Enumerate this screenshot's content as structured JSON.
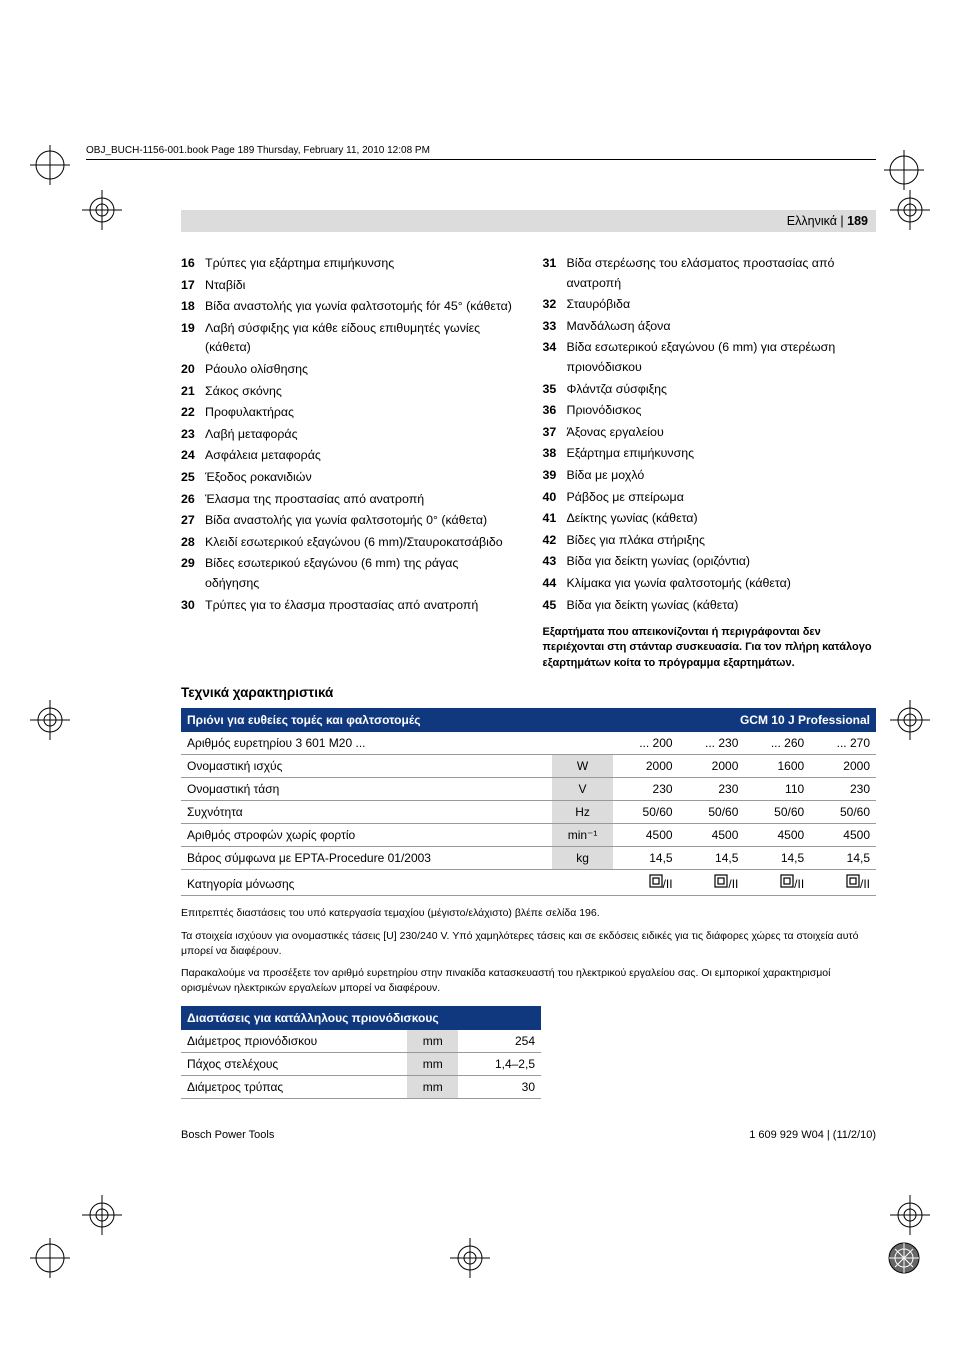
{
  "header_line": "OBJ_BUCH-1156-001.book  Page 189  Thursday, February 11, 2010  12:08 PM",
  "lang_label": "Ελληνικά | ",
  "page_no": "189",
  "left_items": [
    {
      "n": "16",
      "t": "Τρύπες για εξάρτημα επιμήκυνσης"
    },
    {
      "n": "17",
      "t": "Νταβίδι"
    },
    {
      "n": "18",
      "t": "Βίδα αναστολής για γωνία φαλτσοτομής fόr 45° (κάθετα)"
    },
    {
      "n": "19",
      "t": "Λαβή σύσφιξης για κάθε είδους επιθυμητές γωνίες (κάθετα)"
    },
    {
      "n": "20",
      "t": "Ράουλο ολίσθησης"
    },
    {
      "n": "21",
      "t": "Σάκος σκόνης"
    },
    {
      "n": "22",
      "t": "Προφυλακτήρας"
    },
    {
      "n": "23",
      "t": "Λαβή μεταφοράς"
    },
    {
      "n": "24",
      "t": "Ασφάλεια μεταφοράς"
    },
    {
      "n": "25",
      "t": "Έξοδος ροκανιδιών"
    },
    {
      "n": "26",
      "t": "Έλασμα της προστασίας από ανατροπή"
    },
    {
      "n": "27",
      "t": "Βίδα αναστολής για γωνία φαλτσοτομής 0° (κάθετα)"
    },
    {
      "n": "28",
      "t": "Κλειδί εσωτερικού εξαγώνου (6 mm)/Σταυροκατσάβιδο"
    },
    {
      "n": "29",
      "t": "Βίδες εσωτερικού εξαγώνου (6 mm) της ράγας οδήγησης"
    },
    {
      "n": "30",
      "t": "Τρύπες για το έλασμα προστασίας από ανατροπή"
    }
  ],
  "right_items": [
    {
      "n": "31",
      "t": "Βίδα στερέωσης του ελάσματος προστασίας από ανατροπή"
    },
    {
      "n": "32",
      "t": "Σταυρόβιδα"
    },
    {
      "n": "33",
      "t": "Μανδάλωση άξονα"
    },
    {
      "n": "34",
      "t": "Βίδα εσωτερικού εξαγώνου (6 mm) για στερέωση πριονόδισκου"
    },
    {
      "n": "35",
      "t": "Φλάντζα σύσφιξης"
    },
    {
      "n": "36",
      "t": "Πριονόδισκος"
    },
    {
      "n": "37",
      "t": "Άξονας εργαλείου"
    },
    {
      "n": "38",
      "t": "Εξάρτημα επιμήκυνσης"
    },
    {
      "n": "39",
      "t": "Βίδα με μοχλό"
    },
    {
      "n": "40",
      "t": "Ράβδος με σπείρωμα"
    },
    {
      "n": "41",
      "t": "Δείκτης γωνίας (κάθετα)"
    },
    {
      "n": "42",
      "t": "Βίδες για πλάκα στήριξης"
    },
    {
      "n": "43",
      "t": "Βίδα για δείκτη γωνίας (οριζόντια)"
    },
    {
      "n": "44",
      "t": "Κλίμακα για γωνία φαλτσοτομής (κάθετα)"
    },
    {
      "n": "45",
      "t": "Βίδα για δείκτη γωνίας (κάθετα)"
    }
  ],
  "acc_note": "Εξαρτήματα που απεικονίζονται ή περιγράφονται δεν περιέχονται στη στάνταρ συσκευασία. Για τον πλήρη κατάλογο εξαρτημάτων κοίτα το πρόγραμμα εξαρτημάτων.",
  "tech_title": "Τεχνικά χαρακτηριστικά",
  "table1": {
    "hdrL": "Πριόνι για ευθείες τομές και φαλτσοτομές",
    "hdrR": "GCM 10 J Professional",
    "rows": [
      {
        "label": "Αριθμός ευρετηρίου 3 601 M20 ...",
        "unit": "",
        "v": [
          "... 200",
          "... 230",
          "... 260",
          "... 270"
        ]
      },
      {
        "label": "Ονομαστική ισχύς",
        "unit": "W",
        "v": [
          "2000",
          "2000",
          "1600",
          "2000"
        ]
      },
      {
        "label": "Ονομαστική τάση",
        "unit": "V",
        "v": [
          "230",
          "230",
          "110",
          "230"
        ]
      },
      {
        "label": "Συχνότητα",
        "unit": "Hz",
        "v": [
          "50/60",
          "50/60",
          "50/60",
          "50/60"
        ]
      },
      {
        "label": "Αριθμός στροφών χωρίς φορτίο",
        "unit": "min⁻¹",
        "v": [
          "4500",
          "4500",
          "4500",
          "4500"
        ]
      },
      {
        "label": "Βάρος σύμφωνα με EPTA-Procedure 01/2003",
        "unit": "kg",
        "v": [
          "14,5",
          "14,5",
          "14,5",
          "14,5"
        ]
      },
      {
        "label": "Κατηγορία μόνωσης",
        "unit": "",
        "v": [
          "__INS__",
          "__INS__",
          "__INS__",
          "__INS__"
        ]
      }
    ]
  },
  "note1": "Επιτρεπτές διαστάσεις του υπό κατεργασία τεμαχίου (μέγιστο/ελάχιστο) βλέπε σελίδα 196.",
  "note2": "Τα στοιχεία ισχύουν για ονομαστικές τάσεις [U] 230/240 V. Υπό χαμηλότερες τάσεις και σε εκδόσεις ειδικές για τις διάφορες χώρες τα στοιχεία αυτό μπορεί να διαφέρουν.",
  "note3": "Παρακαλούμε να προσέξετε τον αριθμό ευρετηρίου στην πινακίδα κατασκευαστή του ηλεκτρικού εργαλείου σας. Οι εμπορικοί χαρακτηρισμοί ορισμένων ηλεκτρικών εργαλείων μπορεί να διαφέρουν.",
  "table2": {
    "hdr": "Διαστάσεις για κατάλληλους πριονόδισκους",
    "rows": [
      {
        "label": "Διάμετρος πριονόδισκου",
        "unit": "mm",
        "v": "254"
      },
      {
        "label": "Πάχος στελέχους",
        "unit": "mm",
        "v": "1,4–2,5"
      },
      {
        "label": "Διάμετρος τρύπας",
        "unit": "mm",
        "v": "30"
      }
    ]
  },
  "footerL": "Bosch Power Tools",
  "footerR": "1 609 929 W04 | (11/2/10)",
  "colors": {
    "header_blue": "#10387f",
    "grey_bar": "#dcdcdc",
    "rule": "#999999"
  }
}
